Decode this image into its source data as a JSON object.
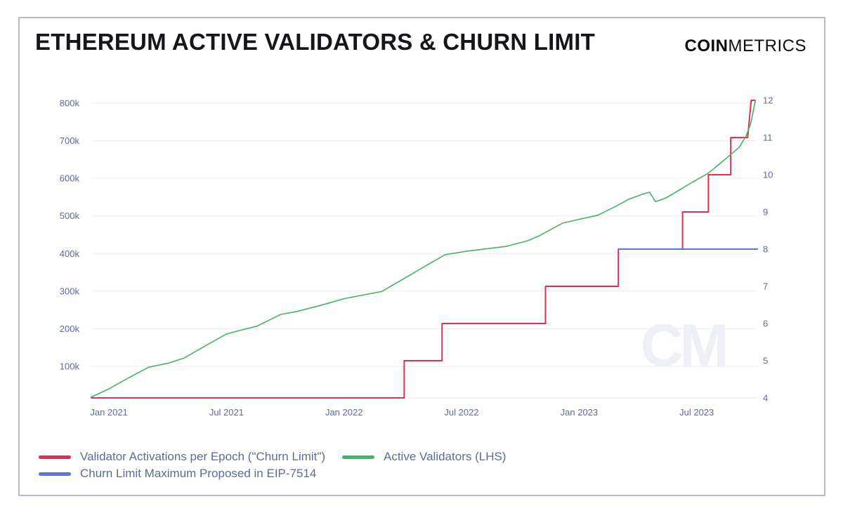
{
  "header": {
    "title": "ETHEREUM ACTIVE VALIDATORS & CHURN LIMIT",
    "brand_bold": "COIN",
    "brand_light": "METRICS"
  },
  "watermark": "CM",
  "chart_data": {
    "type": "line",
    "title": "ETHEREUM ACTIVE VALIDATORS & CHURN LIMIT",
    "grid_color": "#f0f0f4",
    "x_domain": [
      2020.925,
      2023.758
    ],
    "x_ticks": [
      {
        "t": 2021.0,
        "label": "Jan 2021"
      },
      {
        "t": 2021.5,
        "label": "Jul 2021"
      },
      {
        "t": 2022.0,
        "label": "Jan 2022"
      },
      {
        "t": 2022.5,
        "label": "Jul 2022"
      },
      {
        "t": 2023.0,
        "label": "Jan 2023"
      },
      {
        "t": 2023.5,
        "label": "Jul 2023"
      }
    ],
    "y_left": {
      "unit": "validators (thousands)",
      "domain": [
        16,
        807.5
      ],
      "ticks": [
        {
          "v": 800,
          "label": "800k"
        },
        {
          "v": 700,
          "label": "700k"
        },
        {
          "v": 600,
          "label": "600k"
        },
        {
          "v": 500,
          "label": "500k"
        },
        {
          "v": 400,
          "label": "400k"
        },
        {
          "v": 300,
          "label": "300k"
        },
        {
          "v": 200,
          "label": "200k"
        },
        {
          "v": 100,
          "label": "100k"
        }
      ]
    },
    "y_right": {
      "unit": "validators per epoch",
      "domain": [
        4,
        12
      ],
      "ticks": [
        {
          "v": 12,
          "label": "12"
        },
        {
          "v": 11,
          "label": "11"
        },
        {
          "v": 10,
          "label": "10"
        },
        {
          "v": 9,
          "label": "9"
        },
        {
          "v": 8,
          "label": "8"
        },
        {
          "v": 7,
          "label": "7"
        },
        {
          "v": 6,
          "label": "6"
        },
        {
          "v": 5,
          "label": "5"
        },
        {
          "v": 4,
          "label": "4"
        }
      ]
    },
    "series": [
      {
        "name": "Validator Activations per Epoch (\"Churn Limit\")",
        "color": "#e12d52",
        "axis": "right",
        "width": 2,
        "points": [
          [
            2020.925,
            4
          ],
          [
            2022.256,
            4
          ],
          [
            2022.256,
            5
          ],
          [
            2022.417,
            5
          ],
          [
            2022.417,
            6
          ],
          [
            2022.857,
            6
          ],
          [
            2022.857,
            7
          ],
          [
            2023.167,
            7
          ],
          [
            2023.167,
            8
          ],
          [
            2023.44,
            8
          ],
          [
            2023.44,
            9
          ],
          [
            2023.55,
            9
          ],
          [
            2023.55,
            10
          ],
          [
            2023.645,
            10
          ],
          [
            2023.645,
            11
          ],
          [
            2023.717,
            11
          ],
          [
            2023.732,
            12
          ],
          [
            2023.748,
            12
          ]
        ]
      },
      {
        "name": "Active Validators (LHS)",
        "color": "#45b26b",
        "axis": "left",
        "width": 1.6,
        "points": [
          [
            2020.925,
            18
          ],
          [
            2021.0,
            40
          ],
          [
            2021.08,
            68
          ],
          [
            2021.17,
            98
          ],
          [
            2021.25,
            108
          ],
          [
            2021.32,
            122
          ],
          [
            2021.42,
            158
          ],
          [
            2021.5,
            186
          ],
          [
            2021.56,
            196
          ],
          [
            2021.63,
            207
          ],
          [
            2021.73,
            238
          ],
          [
            2021.8,
            246
          ],
          [
            2021.9,
            262
          ],
          [
            2022.0,
            280
          ],
          [
            2022.16,
            299
          ],
          [
            2022.26,
            335
          ],
          [
            2022.35,
            368
          ],
          [
            2022.43,
            397
          ],
          [
            2022.52,
            406
          ],
          [
            2022.69,
            419
          ],
          [
            2022.78,
            434
          ],
          [
            2022.83,
            447
          ],
          [
            2022.93,
            481
          ],
          [
            2023.0,
            491
          ],
          [
            2023.08,
            502
          ],
          [
            2023.17,
            530
          ],
          [
            2023.21,
            544
          ],
          [
            2023.27,
            558
          ],
          [
            2023.3,
            563
          ],
          [
            2023.325,
            538
          ],
          [
            2023.37,
            548
          ],
          [
            2023.44,
            574
          ],
          [
            2023.48,
            589
          ],
          [
            2023.55,
            614
          ],
          [
            2023.62,
            650
          ],
          [
            2023.68,
            682
          ],
          [
            2023.71,
            712
          ],
          [
            2023.73,
            745
          ],
          [
            2023.75,
            807
          ]
        ]
      },
      {
        "name": "Churn Limit Maximum Proposed in EIP-7514",
        "color": "#5a75d6",
        "axis": "right",
        "width": 2,
        "points": [
          [
            2023.167,
            8
          ],
          [
            2023.758,
            8
          ]
        ]
      }
    ],
    "legend_position": "bottom-left"
  }
}
